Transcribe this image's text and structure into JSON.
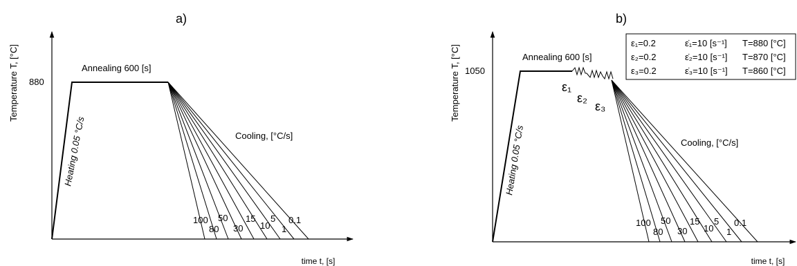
{
  "panel_a": {
    "tag": "a)",
    "y_label": "Temperature  T, [°C]",
    "x_label": "time  t, [s]",
    "temp_tick": "880",
    "annealing_label": "Annealing 600 [s]",
    "heating_label": "Heating 0.05 °C/s",
    "cooling_label": "Cooling, [°C/s]"
  },
  "panel_b": {
    "tag": "b)",
    "y_label": "Temperature  T, [°C]",
    "x_label": "time  t, [s]",
    "temp_tick": "1050",
    "annealing_label": "Annealing 600 [s]",
    "heating_label": "Heating 0.05 °C/s",
    "cooling_label": "Cooling, [°C/s]",
    "eps_labels": [
      "ε₁",
      "ε₂",
      "ε₃"
    ],
    "legend_rows": [
      {
        "strain": "ε₁=0.2",
        "rate": "ε̇₁=10 [s⁻¹]",
        "temp": "T=880 [°C]"
      },
      {
        "strain": "ε₂=0.2",
        "rate": "ε̇₂=10 [s⁻¹]",
        "temp": "T=870 [°C]"
      },
      {
        "strain": "ε₃=0.2",
        "rate": "ε̇₃=10 [s⁻¹]",
        "temp": "T=860 [°C]"
      }
    ]
  },
  "cooling_rates": [
    "100",
    "80",
    "50",
    "30",
    "15",
    "10",
    "5",
    "1",
    "0.1"
  ]
}
